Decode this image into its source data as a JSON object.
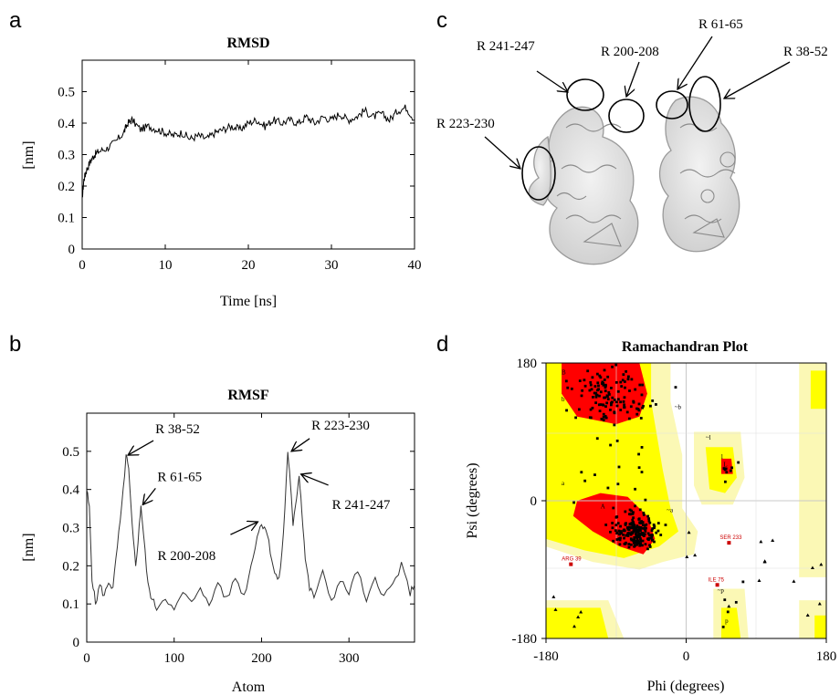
{
  "figure": {
    "panel_letters": [
      "a",
      "b",
      "c",
      "d"
    ]
  },
  "panel_c": {
    "labels": [
      "R 241-247",
      "R 200-208",
      "R 61-65",
      "R 38-52",
      "R 223-230"
    ]
  },
  "chart_data": [
    {
      "panel": "a",
      "type": "line",
      "title": "RMSD",
      "xlabel": "Time [ns]",
      "ylabel": "[nm]",
      "xlim": [
        0,
        40
      ],
      "ylim": [
        0,
        0.6
      ],
      "xticks": [
        0,
        10,
        20,
        30,
        40
      ],
      "yticks": [
        0,
        0.1,
        0.2,
        0.3,
        0.4,
        0.5
      ],
      "grid": false,
      "series": [
        {
          "x": [
            0,
            0.2,
            0.5,
            1,
            1.5,
            2,
            3,
            4,
            5,
            5.5,
            6,
            7,
            8,
            9,
            10,
            11,
            12,
            13,
            14,
            15,
            16,
            17,
            18,
            19,
            20,
            21,
            22,
            23,
            24,
            25,
            26,
            27,
            28,
            29,
            30,
            31,
            32,
            33,
            34,
            35,
            36,
            37,
            38,
            39,
            40
          ],
          "y": [
            0.16,
            0.22,
            0.25,
            0.28,
            0.3,
            0.31,
            0.32,
            0.34,
            0.37,
            0.4,
            0.41,
            0.38,
            0.39,
            0.38,
            0.37,
            0.36,
            0.37,
            0.35,
            0.36,
            0.35,
            0.37,
            0.38,
            0.39,
            0.38,
            0.4,
            0.41,
            0.39,
            0.41,
            0.4,
            0.41,
            0.4,
            0.42,
            0.4,
            0.42,
            0.41,
            0.43,
            0.41,
            0.42,
            0.44,
            0.42,
            0.43,
            0.41,
            0.44,
            0.45,
            0.41
          ]
        }
      ]
    },
    {
      "panel": "b",
      "type": "line",
      "title": "RMSF",
      "xlabel": "Atom",
      "ylabel": "[nm]",
      "xlim": [
        0,
        375
      ],
      "ylim": [
        0,
        0.6
      ],
      "xticks": [
        0,
        100,
        200,
        300
      ],
      "yticks": [
        0,
        0.1,
        0.2,
        0.3,
        0.4,
        0.5
      ],
      "grid": false,
      "annotations": [
        {
          "text": "R 38-52",
          "x": 45,
          "y": 0.49
        },
        {
          "text": "R 61-65",
          "x": 62,
          "y": 0.36
        },
        {
          "text": "R 200-208",
          "x": 200,
          "y": 0.32
        },
        {
          "text": "R 223-230",
          "x": 232,
          "y": 0.5
        },
        {
          "text": "R 241-247",
          "x": 243,
          "y": 0.44
        }
      ],
      "series": [
        {
          "x": [
            0,
            3,
            6,
            10,
            15,
            20,
            25,
            30,
            35,
            40,
            45,
            48,
            52,
            56,
            60,
            62,
            65,
            70,
            75,
            80,
            90,
            100,
            110,
            120,
            130,
            140,
            150,
            160,
            170,
            180,
            188,
            195,
            200,
            205,
            210,
            215,
            220,
            225,
            230,
            233,
            236,
            240,
            243,
            246,
            250,
            255,
            260,
            270,
            280,
            290,
            300,
            310,
            320,
            330,
            340,
            350,
            360,
            370,
            375
          ],
          "y": [
            0.4,
            0.35,
            0.17,
            0.1,
            0.15,
            0.12,
            0.16,
            0.14,
            0.25,
            0.35,
            0.49,
            0.45,
            0.3,
            0.2,
            0.3,
            0.36,
            0.28,
            0.15,
            0.11,
            0.09,
            0.12,
            0.08,
            0.13,
            0.1,
            0.15,
            0.09,
            0.16,
            0.11,
            0.17,
            0.12,
            0.2,
            0.28,
            0.31,
            0.3,
            0.24,
            0.18,
            0.16,
            0.28,
            0.5,
            0.42,
            0.3,
            0.38,
            0.44,
            0.35,
            0.22,
            0.14,
            0.12,
            0.18,
            0.11,
            0.16,
            0.13,
            0.19,
            0.1,
            0.17,
            0.12,
            0.15,
            0.2,
            0.13,
            0.15
          ]
        }
      ]
    },
    {
      "panel": "d",
      "type": "scatter",
      "title": "Ramachandran Plot",
      "xlabel": "Phi (degrees)",
      "ylabel": "Psi (degrees)",
      "xlim": [
        -180,
        180
      ],
      "ylim": [
        -180,
        180
      ],
      "xticks": [
        -180,
        0,
        180
      ],
      "yticks": [
        -180,
        0,
        180
      ],
      "region_labels": [
        "B",
        "b",
        "a",
        "A",
        "~a",
        "~b",
        "l",
        "L",
        "~l",
        "~p",
        "p"
      ],
      "labeled_residues": [
        {
          "text": "SER 233",
          "x": 55,
          "y": -55
        },
        {
          "text": "ARG 39",
          "x": -148,
          "y": -83
        },
        {
          "text": "ILE 75",
          "x": 40,
          "y": -110
        }
      ],
      "colors": {
        "core": "#ff0000",
        "allowed": "#ffff00",
        "generous": "#ffffa0",
        "disallowed": "#ffffff"
      }
    }
  ]
}
